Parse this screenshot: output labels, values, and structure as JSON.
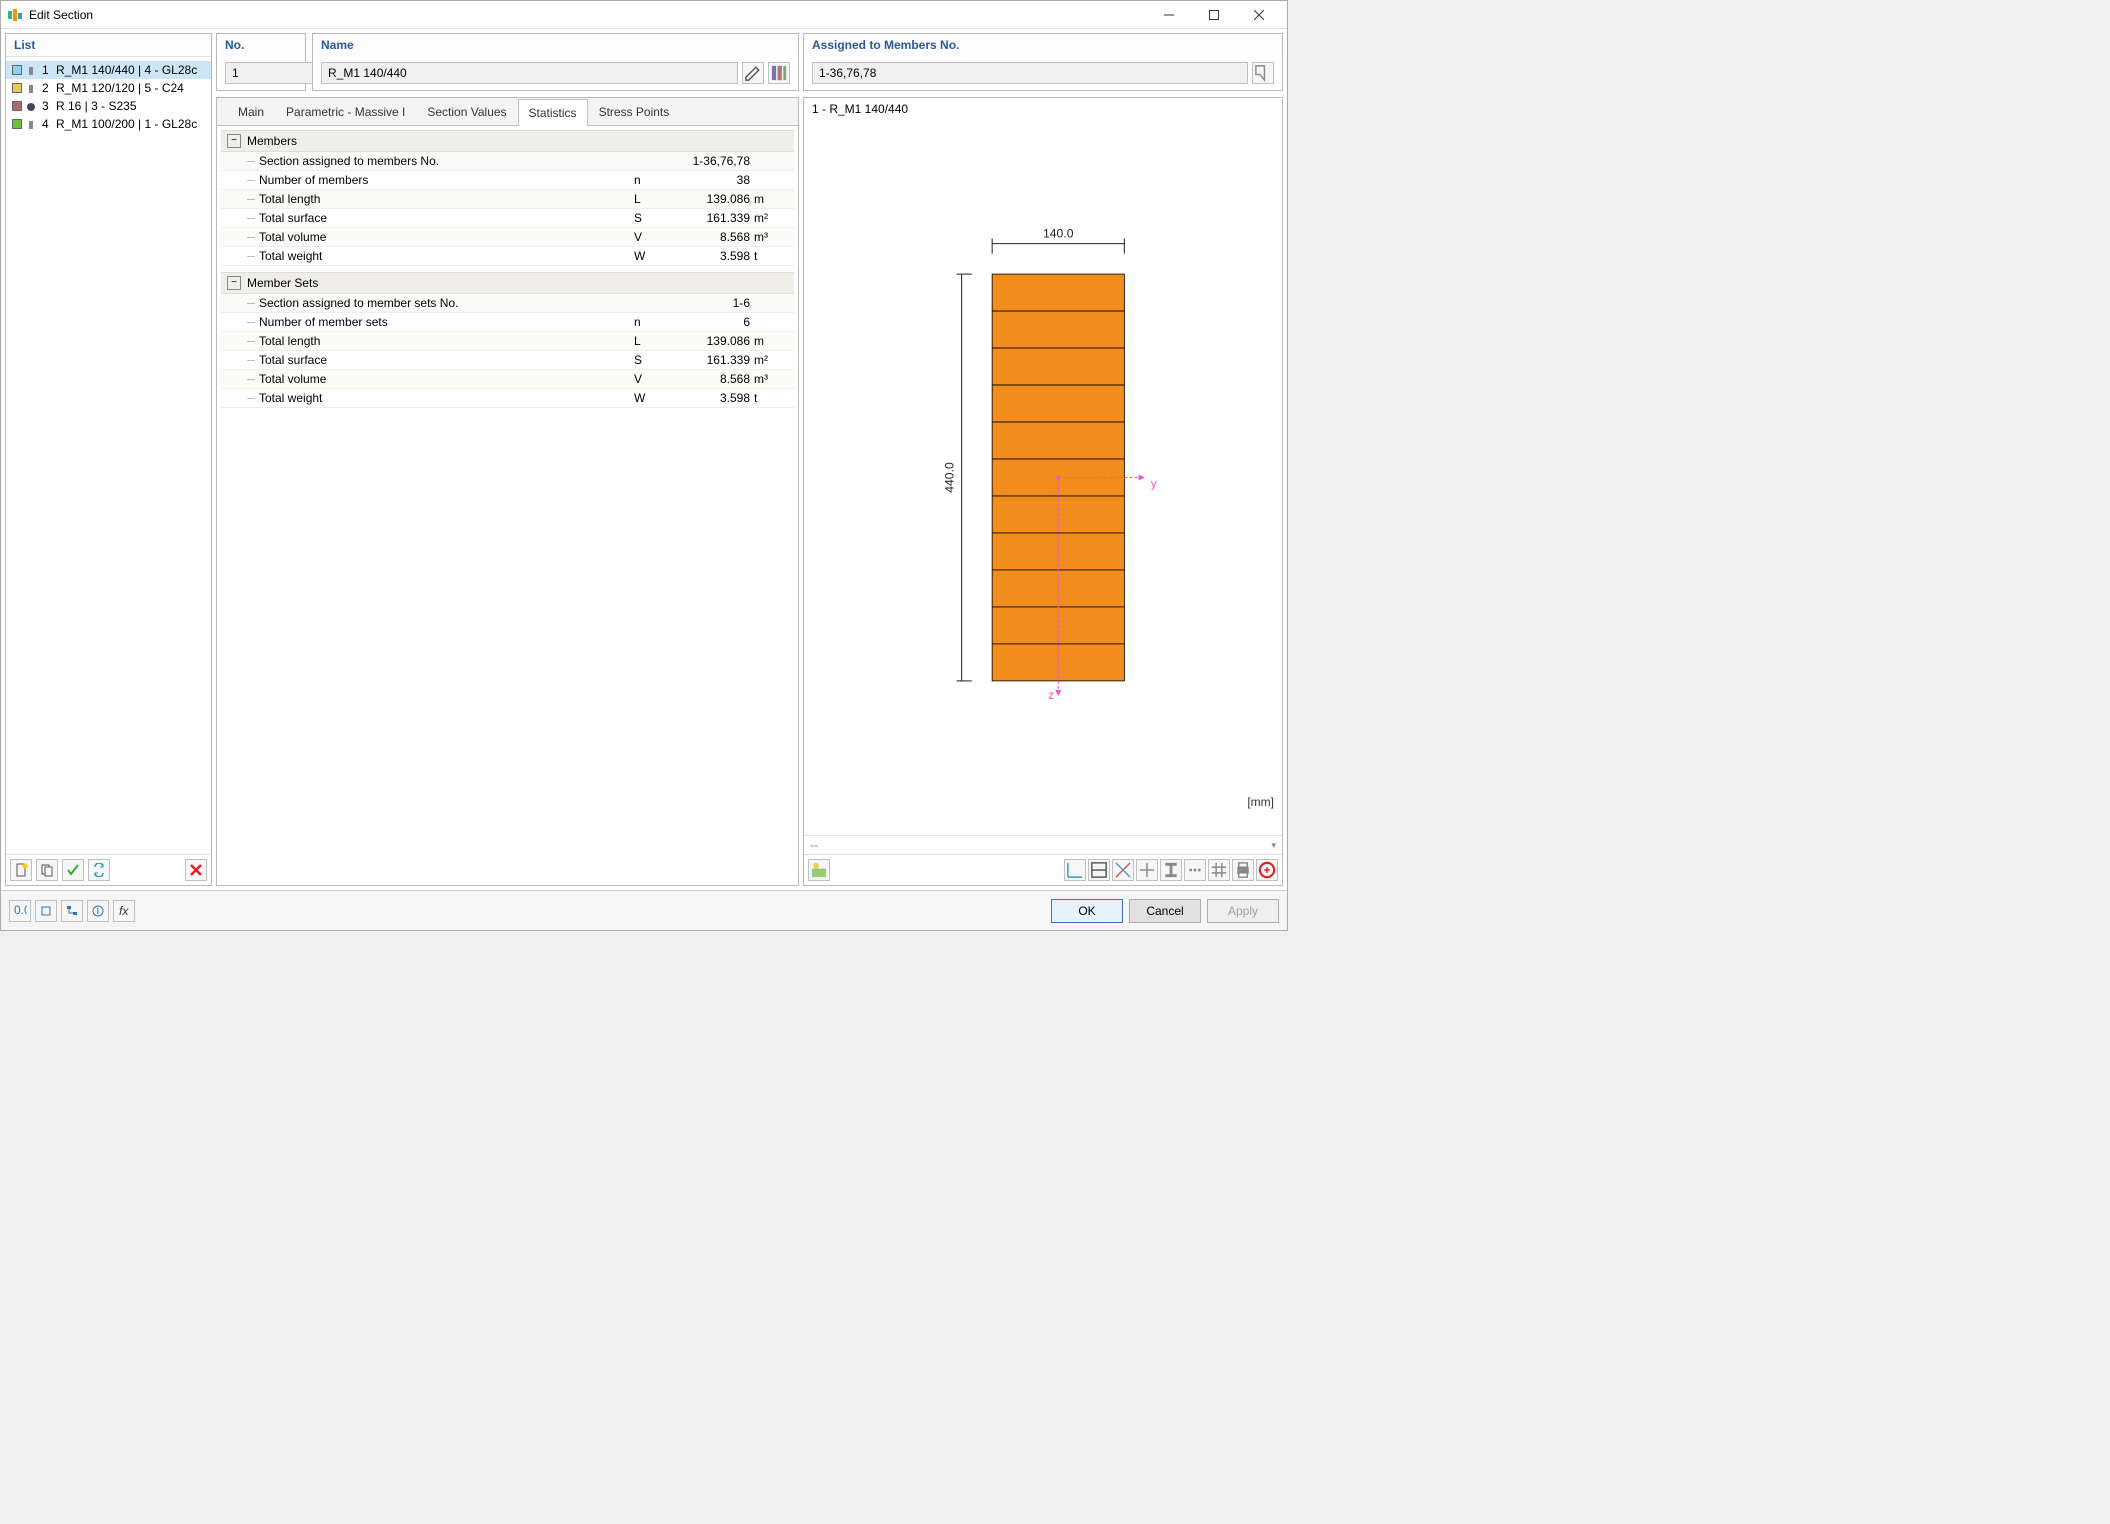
{
  "window": {
    "title": "Edit Section"
  },
  "list": {
    "header": "List",
    "items": [
      {
        "num": "1",
        "label": "R_M1 140/440 | 4 - GL28c",
        "swatch": "#8fd3f4",
        "secicon": "rect"
      },
      {
        "num": "2",
        "label": "R_M1 120/120 | 5 - C24",
        "swatch": "#e7c95a",
        "secicon": "rect"
      },
      {
        "num": "3",
        "label": "R 16 | 3 - S235",
        "swatch": "#b06a6a",
        "secicon": "circle"
      },
      {
        "num": "4",
        "label": "R_M1 100/200 | 1 - GL28c",
        "swatch": "#6fbf3a",
        "secicon": "rect"
      }
    ],
    "selected_index": 0
  },
  "no_field": {
    "label": "No.",
    "value": "1"
  },
  "name_field": {
    "label": "Name",
    "value": "R_M1 140/440"
  },
  "assigned": {
    "label": "Assigned to Members No.",
    "value": "1-36,76,78"
  },
  "tabs": {
    "items": [
      "Main",
      "Parametric - Massive I",
      "Section Values",
      "Statistics",
      "Stress Points"
    ],
    "active_index": 3
  },
  "stats": {
    "members": {
      "title": "Members",
      "rows": [
        {
          "label": "Section assigned to members No.",
          "sym": "",
          "val": "1-36,76,78",
          "unit": ""
        },
        {
          "label": "Number of members",
          "sym": "n",
          "val": "38",
          "unit": ""
        },
        {
          "label": "Total length",
          "sym": "L",
          "val": "139.086",
          "unit": "m"
        },
        {
          "label": "Total surface",
          "sym": "S",
          "val": "161.339",
          "unit": "m²"
        },
        {
          "label": "Total volume",
          "sym": "V",
          "val": "8.568",
          "unit": "m³"
        },
        {
          "label": "Total weight",
          "sym": "W",
          "val": "3.598",
          "unit": "t"
        }
      ]
    },
    "membersets": {
      "title": "Member Sets",
      "rows": [
        {
          "label": "Section assigned to member sets No.",
          "sym": "",
          "val": "1-6",
          "unit": ""
        },
        {
          "label": "Number of member sets",
          "sym": "n",
          "val": "6",
          "unit": ""
        },
        {
          "label": "Total length",
          "sym": "L",
          "val": "139.086",
          "unit": "m"
        },
        {
          "label": "Total surface",
          "sym": "S",
          "val": "161.339",
          "unit": "m²"
        },
        {
          "label": "Total volume",
          "sym": "V",
          "val": "8.568",
          "unit": "m³"
        },
        {
          "label": "Total weight",
          "sym": "W",
          "val": "3.598",
          "unit": "t"
        }
      ]
    }
  },
  "preview": {
    "title": "1 - R_M1 140/440",
    "width_label": "140.0",
    "height_label": "440.0",
    "y_label": "y",
    "z_label": "z",
    "unit_label": "[mm]",
    "combo_text": "--",
    "section_color": "#f28c1d",
    "section_stroke": "#000000",
    "dim_color": "#222222",
    "axis_color": "#e858cf",
    "laminae": 11,
    "rect_w": 130,
    "rect_h": 400
  },
  "buttons": {
    "ok": "OK",
    "cancel": "Cancel",
    "apply": "Apply"
  }
}
